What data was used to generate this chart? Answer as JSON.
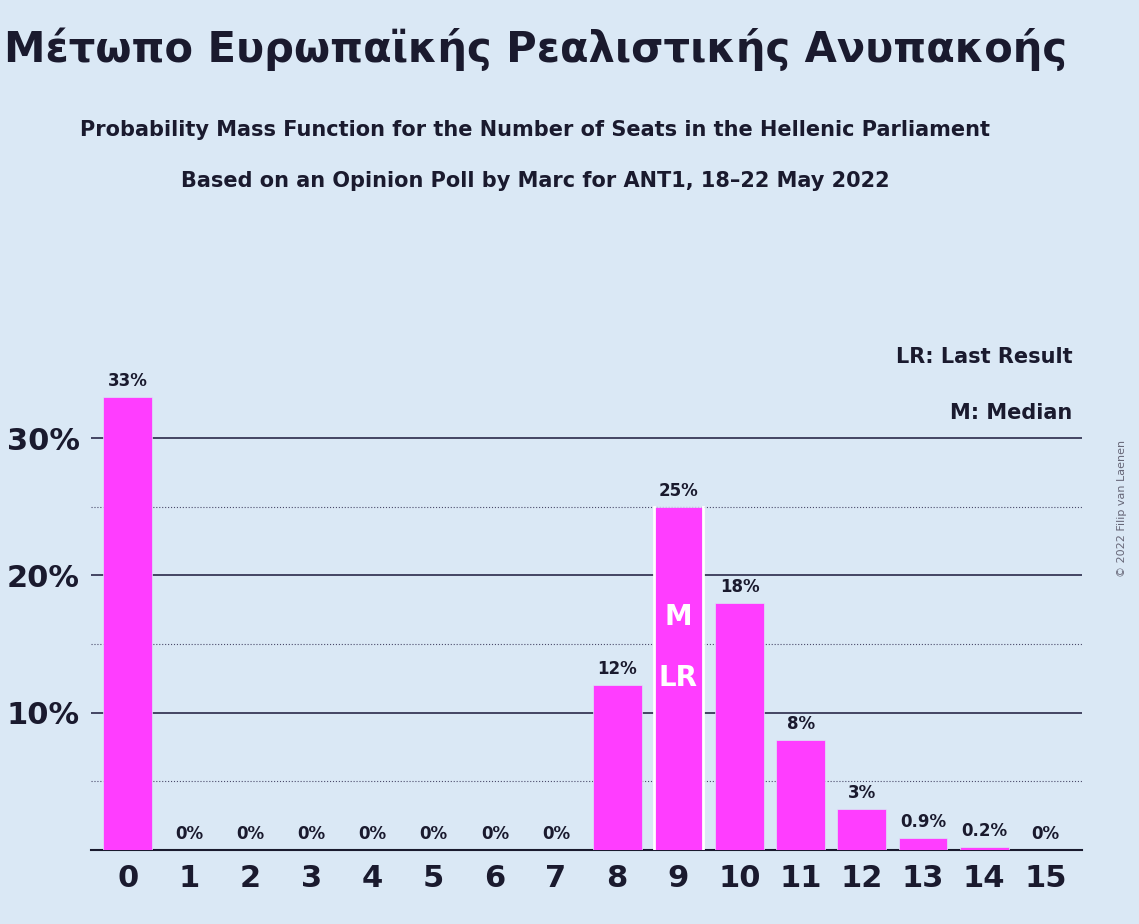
{
  "title": "Μέτωπο Ευρωπαϊκής Ρεαλιστικής Ανυπακοής",
  "subtitle1": "Probability Mass Function for the Number of Seats in the Hellenic Parliament",
  "subtitle2": "Based on an Opinion Poll by Marc for ANT1, 18–22 May 2022",
  "copyright": "© 2022 Filip van Laenen",
  "legend_lr": "LR: Last Result",
  "legend_m": "M: Median",
  "x_values": [
    0,
    1,
    2,
    3,
    4,
    5,
    6,
    7,
    8,
    9,
    10,
    11,
    12,
    13,
    14,
    15
  ],
  "y_values": [
    0.33,
    0.0,
    0.0,
    0.0,
    0.0,
    0.0,
    0.0,
    0.0,
    0.12,
    0.25,
    0.18,
    0.08,
    0.03,
    0.009,
    0.002,
    0.0
  ],
  "bar_labels": [
    "33%",
    "0%",
    "0%",
    "0%",
    "0%",
    "0%",
    "0%",
    "0%",
    "12%",
    "25%",
    "18%",
    "8%",
    "3%",
    "0.9%",
    "0.2%",
    "0%"
  ],
  "bar_color": "#FF3DFF",
  "background_color": "#DAE8F5",
  "text_color": "#1a1a2e",
  "median_seat": 9,
  "last_result_seat": 9,
  "ylim": [
    0,
    0.37
  ],
  "yticks": [
    0.0,
    0.05,
    0.1,
    0.15,
    0.2,
    0.25,
    0.3,
    0.35
  ],
  "major_yticks": [
    0.1,
    0.2,
    0.3
  ],
  "minor_yticks": [
    0.05,
    0.15,
    0.25
  ],
  "figsize": [
    11.39,
    9.24
  ],
  "dpi": 100
}
